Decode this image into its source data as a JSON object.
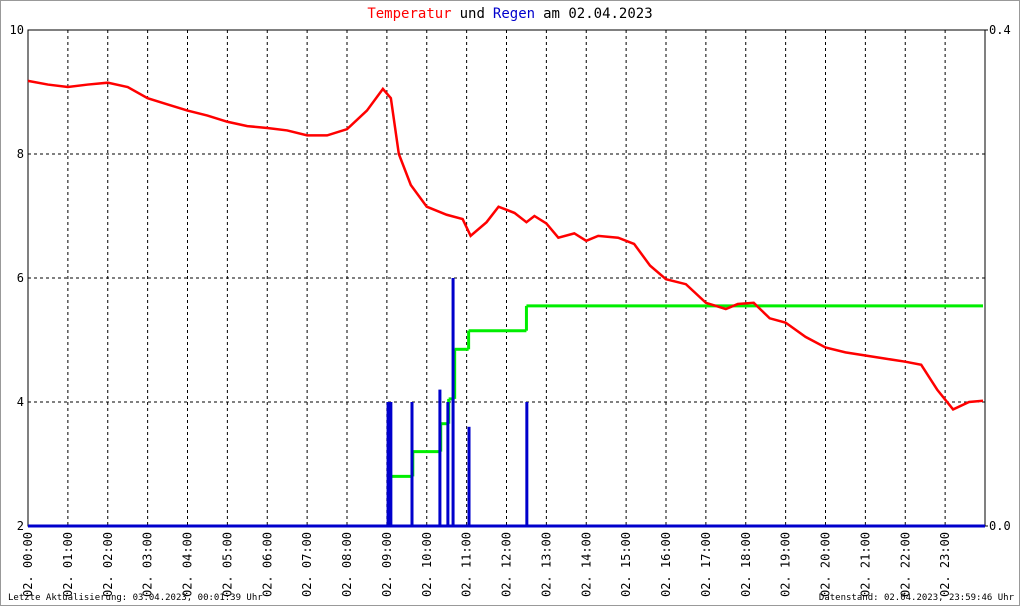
{
  "chart_data": {
    "type": "line",
    "title_parts": [
      {
        "text": "Temperatur",
        "color": "#ff0000"
      },
      {
        "text": "und",
        "color": "#000000"
      },
      {
        "text": "Regen",
        "color": "#0000cc"
      },
      {
        "text": "am 02.04.2023",
        "color": "#000000"
      }
    ],
    "xlim": [
      0,
      24
    ],
    "xticks": [
      {
        "value": 0,
        "label": "02. 00:00"
      },
      {
        "value": 1,
        "label": "02. 01:00"
      },
      {
        "value": 2,
        "label": "02. 02:00"
      },
      {
        "value": 3,
        "label": "02. 03:00"
      },
      {
        "value": 4,
        "label": "02. 04:00"
      },
      {
        "value": 5,
        "label": "02. 05:00"
      },
      {
        "value": 6,
        "label": "02. 06:00"
      },
      {
        "value": 7,
        "label": "02. 07:00"
      },
      {
        "value": 8,
        "label": "02. 08:00"
      },
      {
        "value": 9,
        "label": "02. 09:00"
      },
      {
        "value": 10,
        "label": "02. 10:00"
      },
      {
        "value": 11,
        "label": "02. 11:00"
      },
      {
        "value": 12,
        "label": "02. 12:00"
      },
      {
        "value": 13,
        "label": "02. 13:00"
      },
      {
        "value": 14,
        "label": "02. 14:00"
      },
      {
        "value": 15,
        "label": "02. 15:00"
      },
      {
        "value": 16,
        "label": "02. 16:00"
      },
      {
        "value": 17,
        "label": "02. 17:00"
      },
      {
        "value": 18,
        "label": "02. 18:00"
      },
      {
        "value": 19,
        "label": "02. 19:00"
      },
      {
        "value": 20,
        "label": "02. 20:00"
      },
      {
        "value": 21,
        "label": "02. 21:00"
      },
      {
        "value": 22,
        "label": "02. 22:00"
      },
      {
        "value": 23,
        "label": "02. 23:00"
      }
    ],
    "ylim": [
      2,
      10
    ],
    "yticks": [
      2,
      4,
      6,
      8,
      10
    ],
    "y2lim": [
      0,
      0.4
    ],
    "y2ticks": [
      {
        "value": 0,
        "label": "0.0"
      },
      {
        "value": 0.4,
        "label": "0.4"
      }
    ],
    "grid": true,
    "series": [
      {
        "type": "line",
        "color": "#ff0000",
        "x": [
          0,
          0.5,
          1,
          1.5,
          2,
          2.5,
          3,
          3.5,
          4,
          4.5,
          5,
          5.5,
          6,
          6.5,
          7,
          7.5,
          8,
          8.5,
          8.9,
          9.1,
          9.3,
          9.6,
          10,
          10.5,
          10.9,
          11.1,
          11.5,
          11.8,
          12.2,
          12.5,
          12.7,
          13,
          13.3,
          13.7,
          14,
          14.3,
          14.8,
          15.2,
          15.6,
          16,
          16.5,
          17,
          17.5,
          17.8,
          18.2,
          18.6,
          19,
          19.5,
          20,
          20.5,
          21,
          21.5,
          22,
          22.4,
          22.8,
          23.2,
          23.6,
          23.95
        ],
        "values": [
          9.18,
          9.12,
          9.08,
          9.12,
          9.15,
          9.08,
          8.9,
          8.8,
          8.7,
          8.62,
          8.52,
          8.45,
          8.42,
          8.38,
          8.3,
          8.3,
          8.4,
          8.7,
          9.05,
          8.9,
          8.0,
          7.5,
          7.15,
          7.02,
          6.95,
          6.68,
          6.9,
          7.15,
          7.05,
          6.9,
          7.0,
          6.88,
          6.65,
          6.72,
          6.6,
          6.68,
          6.65,
          6.55,
          6.2,
          5.98,
          5.9,
          5.6,
          5.5,
          5.58,
          5.6,
          5.35,
          5.28,
          5.05,
          4.88,
          4.8,
          4.75,
          4.7,
          4.65,
          4.6,
          4.2,
          3.88,
          4.0,
          4.02
        ]
      },
      {
        "type": "bar",
        "axis": "y2",
        "color": "#0000cc",
        "x": [
          9.03,
          9.1,
          9.63,
          10.33,
          10.53,
          10.66,
          11.06,
          12.51
        ],
        "values": [
          0.1,
          0.1,
          0.1,
          0.11,
          0.1,
          0.2,
          0.08,
          0.1
        ]
      },
      {
        "type": "step",
        "axis": "y2",
        "color": "#00ee00",
        "x": [
          9.1,
          9.65,
          10.35,
          10.55,
          10.7,
          11.05,
          12.5,
          23.95
        ],
        "values": [
          0.04,
          0.06,
          0.0825,
          0.1025,
          0.1425,
          0.1575,
          0.1775,
          0.1775
        ]
      }
    ],
    "footer_left": "Letzte Aktualisierung: 03.04.2023, 00:01:39 Uhr",
    "footer_right": "Datenstand: 02.04.2023, 23:59:46 Uhr"
  }
}
